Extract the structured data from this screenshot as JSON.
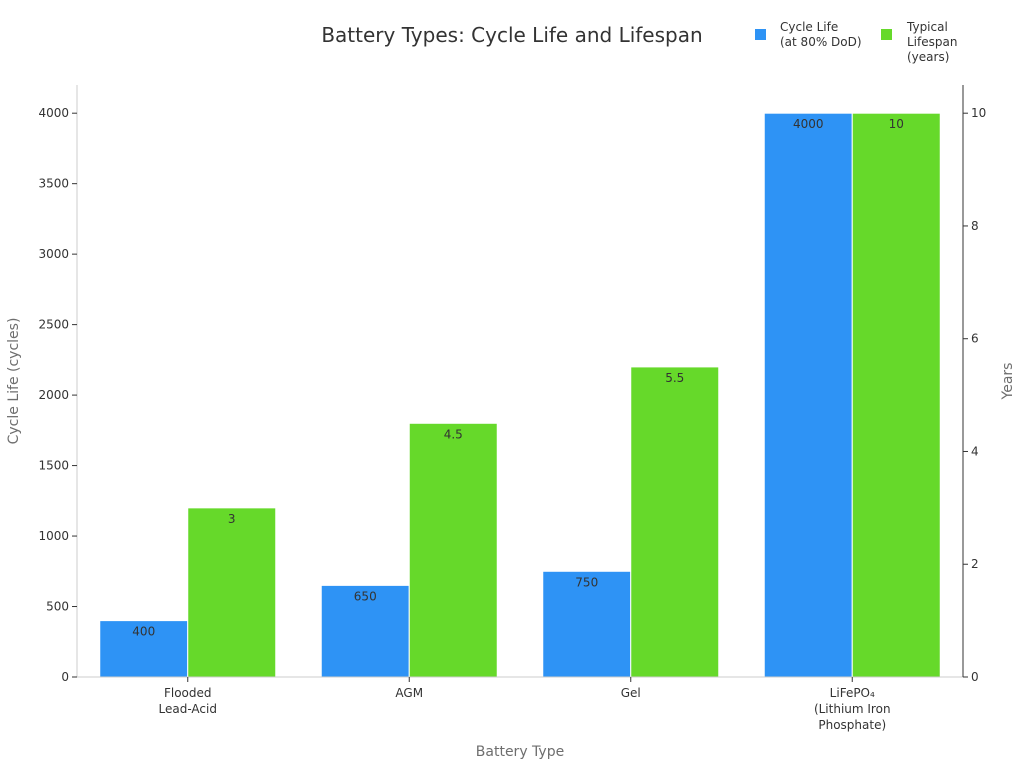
{
  "chart_data": {
    "type": "bar",
    "title": "Battery Types: Cycle Life and Lifespan",
    "xlabel": "Battery Type",
    "ylabel": "Cycle Life (cycles)",
    "y2label": "Years",
    "categories": [
      [
        "Flooded",
        "Lead-Acid"
      ],
      [
        "AGM"
      ],
      [
        "Gel"
      ],
      [
        "LiFePO₄",
        "(Lithium Iron",
        "Phosphate)"
      ]
    ],
    "ylim": [
      0,
      4200
    ],
    "y2lim": [
      0,
      10.5
    ],
    "yticks": [
      0,
      500,
      1000,
      1500,
      2000,
      2500,
      3000,
      3500,
      4000
    ],
    "y2ticks": [
      0,
      2,
      4,
      6,
      8,
      10
    ],
    "legend_position": "top-right",
    "grid": false,
    "series": [
      {
        "name": [
          "Cycle Life",
          "(at 80% DoD)"
        ],
        "axis": "left",
        "color": "#2e93f5",
        "values": [
          400,
          650,
          750,
          4000
        ],
        "labels": [
          "400",
          "650",
          "750",
          "4000"
        ]
      },
      {
        "name": [
          "Typical",
          "Lifespan",
          "(years)"
        ],
        "axis": "right",
        "color": "#66d92a",
        "values": [
          3,
          4.5,
          5.5,
          10
        ],
        "labels": [
          "3",
          "4.5",
          "5.5",
          "10"
        ]
      }
    ]
  }
}
